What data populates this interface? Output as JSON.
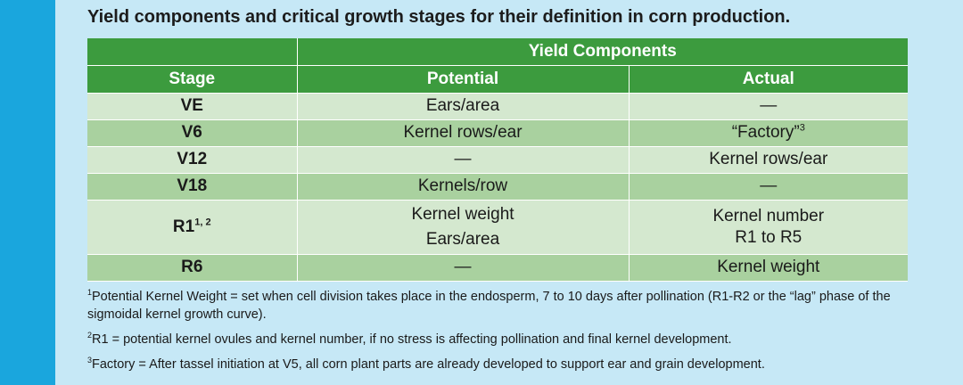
{
  "title": "Yield components and critical growth stages for their definition in corn production.",
  "table": {
    "group_header": "Yield Components",
    "col_stage": "Stage",
    "col_potential": "Potential",
    "col_actual": "Actual",
    "rows": [
      {
        "stage": "VE",
        "potential": "Ears/area",
        "actual": "—"
      },
      {
        "stage": "V6",
        "potential": "Kernel rows/ear",
        "actual": "“Factory”",
        "actual_sup": "3"
      },
      {
        "stage": "V12",
        "potential": "—",
        "actual": "Kernel rows/ear"
      },
      {
        "stage": "V18",
        "potential": "Kernels/row",
        "actual": "—"
      },
      {
        "stage": "R1",
        "stage_sup": "1, 2",
        "potential_line1": "Kernel weight",
        "potential_line2": "Ears/area",
        "actual_line1": "Kernel number",
        "actual_line2": "R1 to R5"
      },
      {
        "stage": "R6",
        "potential": "—",
        "actual": "Kernel weight"
      }
    ]
  },
  "footnotes": [
    {
      "marker": "1",
      "text": "Potential Kernel Weight = set when cell division takes place in the endosperm, 7 to 10 days after pollination (R1-R2 or the “lag” phase of the sigmoidal kernel growth curve)."
    },
    {
      "marker": "2",
      "text": "R1 = potential kernel ovules and kernel number, if no stress is affecting pollination and final kernel development."
    },
    {
      "marker": "3",
      "text": "Factory = After tassel initiation at V5, all corn plant parts are already developed to support ear and grain development."
    }
  ],
  "colors": {
    "left_bar": "#1aa6dd",
    "background": "#c6e8f6",
    "header_green": "#3c9b3e",
    "row_light": "#d4e8cf",
    "row_dark": "#a9d19f"
  }
}
